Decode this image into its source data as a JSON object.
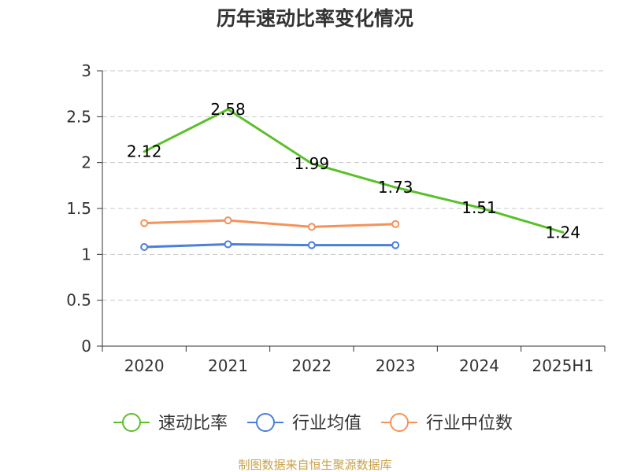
{
  "chart_data": {
    "type": "line",
    "title": "历年速动比率变化情况",
    "categories": [
      "2020",
      "2021",
      "2022",
      "2023",
      "2024",
      "2025H1"
    ],
    "ylim": [
      0,
      3
    ],
    "yticks": [
      "0",
      "0.5",
      "1",
      "1.5",
      "2",
      "2.5",
      "3"
    ],
    "grid": true,
    "legend_position": "bottom",
    "series": [
      {
        "name": "速动比率",
        "color": "#5ac02a",
        "values": [
          2.12,
          2.58,
          1.99,
          1.73,
          1.51,
          1.24
        ],
        "labels": [
          "2.12",
          "2.58",
          "1.99",
          "1.73",
          "1.51",
          "1.24"
        ],
        "show_markers": false,
        "show_labels": true
      },
      {
        "name": "行业均值",
        "color": "#4a7fdc",
        "values": [
          1.08,
          1.11,
          1.1,
          1.1,
          null,
          null
        ],
        "show_markers": true,
        "show_labels": false
      },
      {
        "name": "行业中位数",
        "color": "#f5925a",
        "values": [
          1.34,
          1.37,
          1.3,
          1.33,
          null,
          null
        ],
        "show_markers": true,
        "show_labels": false
      }
    ],
    "source": "制图数据来自恒生聚源数据库"
  }
}
